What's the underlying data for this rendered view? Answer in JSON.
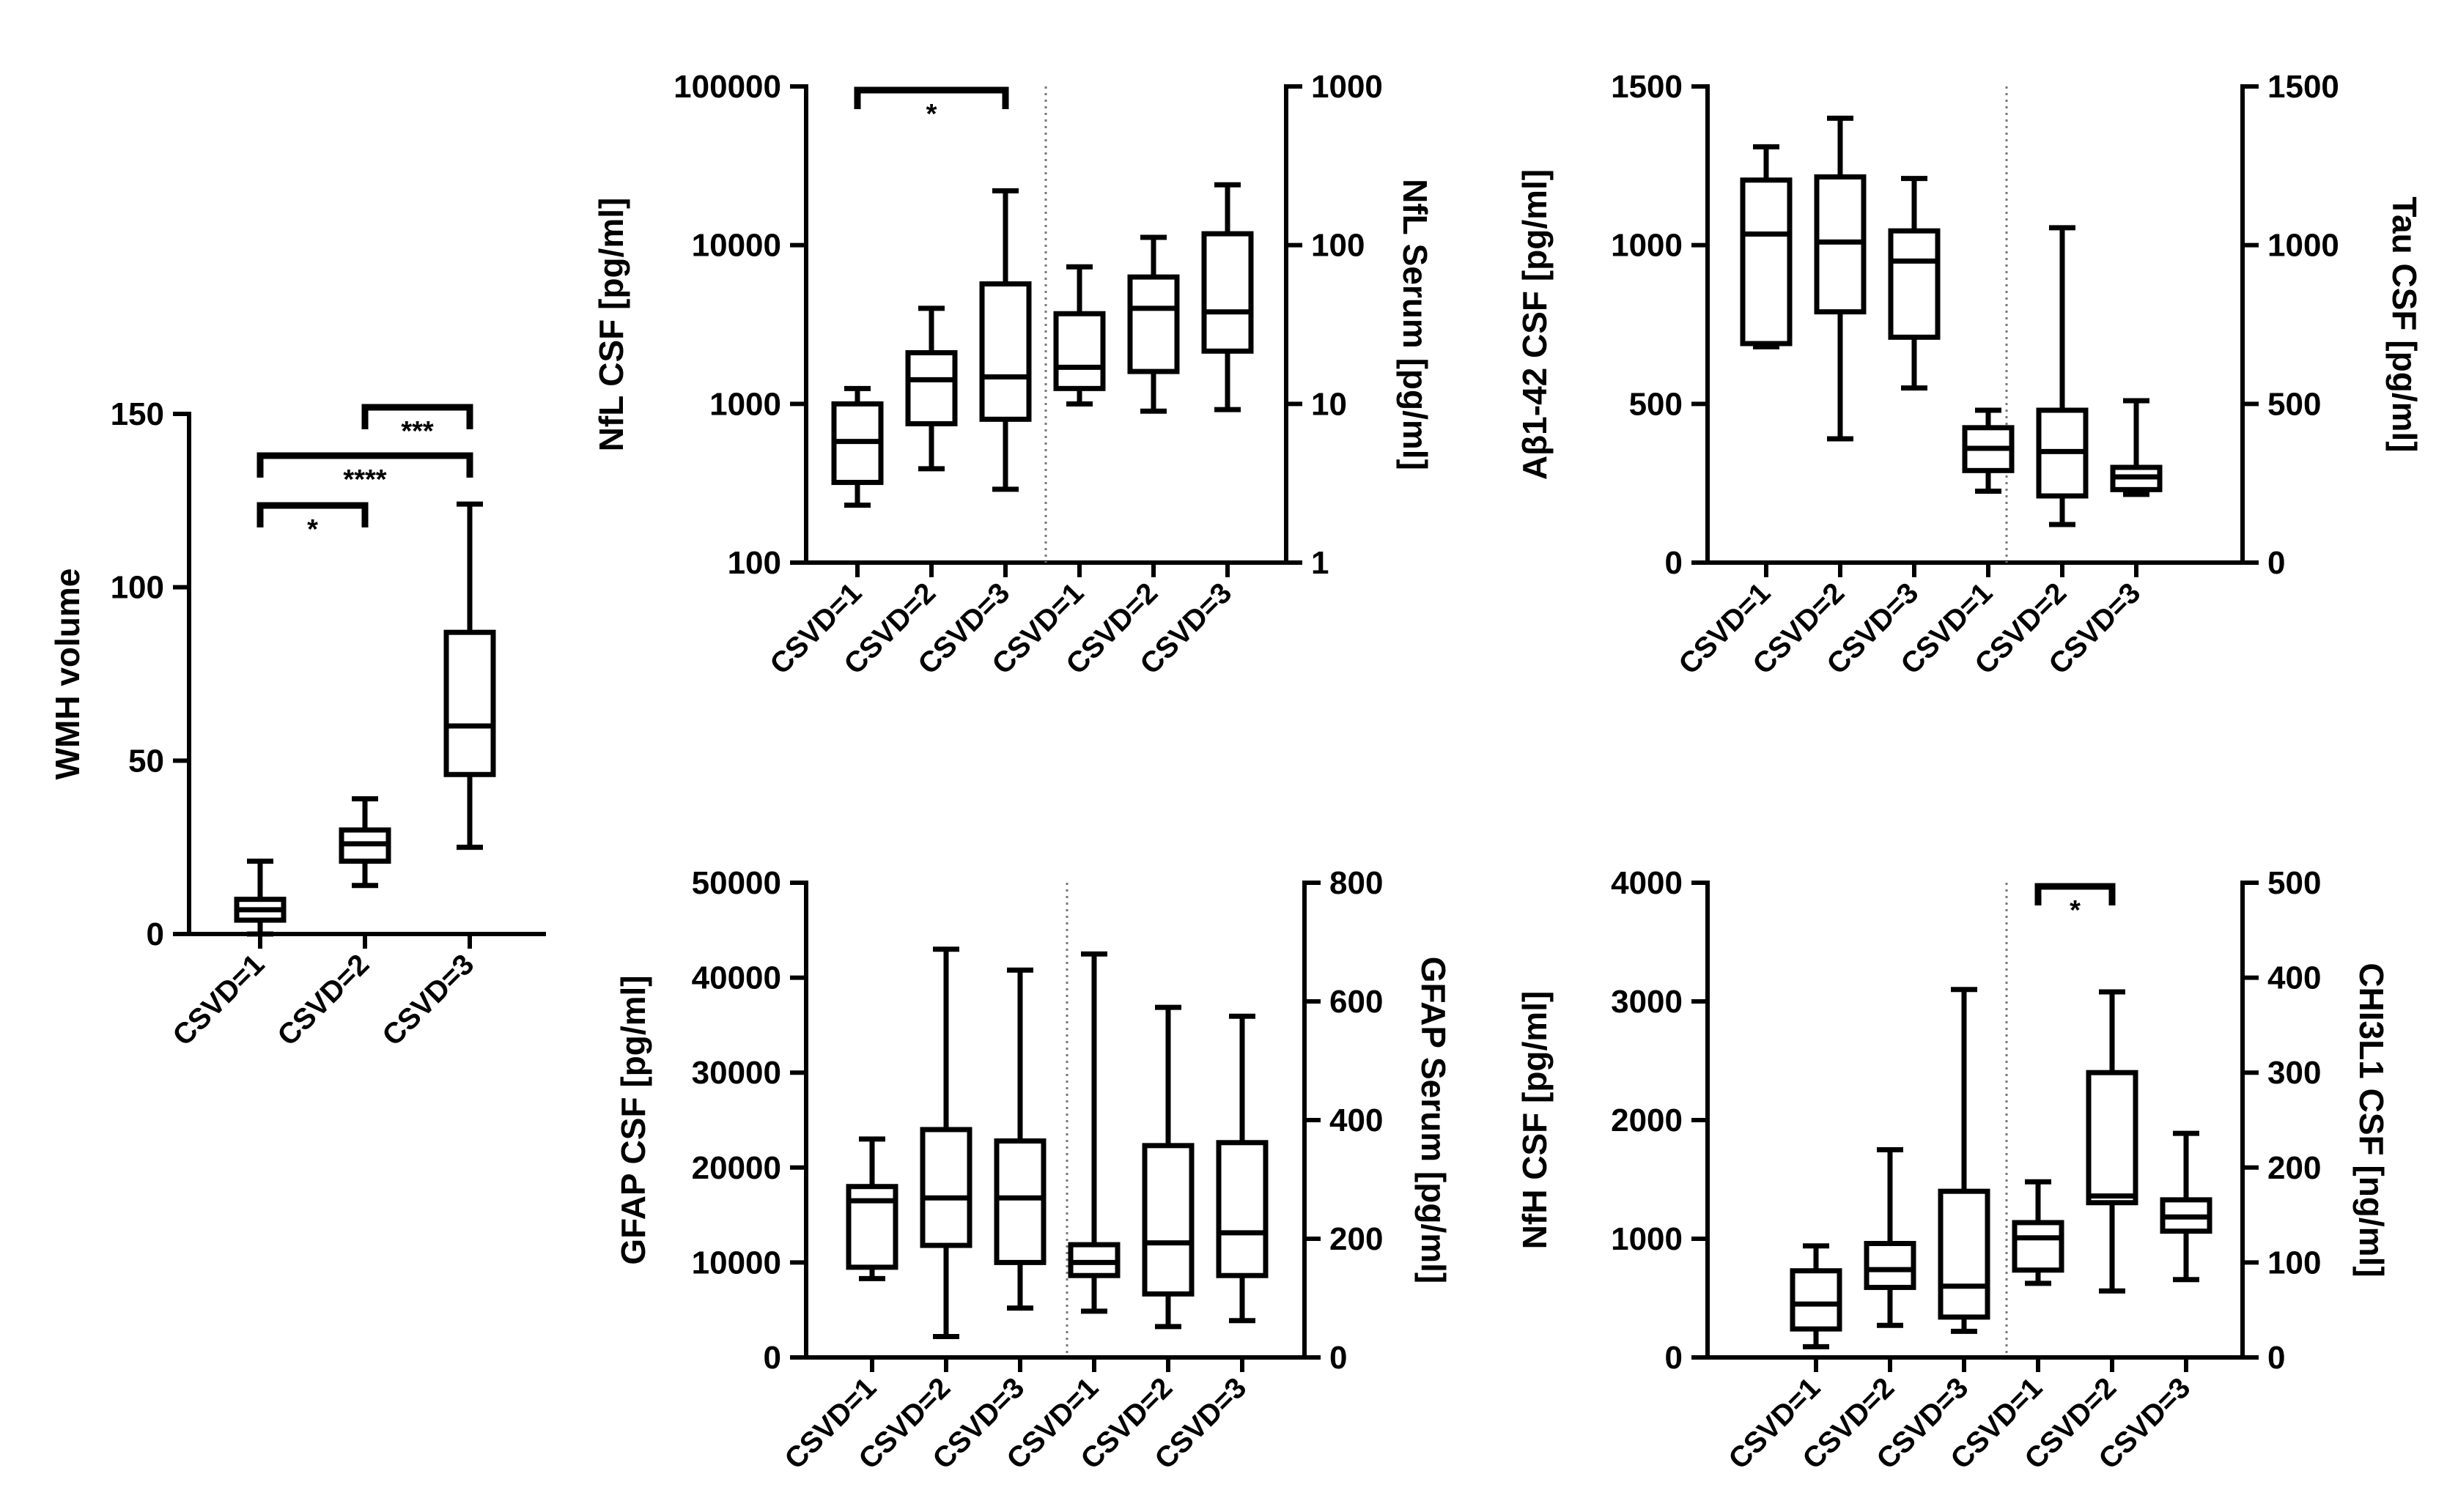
{
  "chart_data": [
    {
      "id": "wmh",
      "type": "boxplot",
      "title": "",
      "categories": [
        "CSVD=1",
        "CSVD=2",
        "CSVD=3"
      ],
      "ylabel": "WMH volume",
      "ylim": [
        0,
        150
      ],
      "yscale": "linear",
      "yticks": [
        0,
        50,
        100,
        150
      ],
      "ytick_labels": [
        "0",
        "50",
        "100",
        "150"
      ],
      "series": [
        {
          "name": "WMH volume",
          "axis": "left",
          "boxes": [
            {
              "min": 0,
              "q1": 4,
              "median": 7,
              "q3": 10,
              "max": 21
            },
            {
              "min": 14,
              "q1": 21,
              "median": 26,
              "q3": 30,
              "max": 39
            },
            {
              "min": 25,
              "q1": 46,
              "median": 60,
              "q3": 87,
              "max": 124
            }
          ]
        }
      ],
      "significance": [
        {
          "from": 0,
          "to": 1,
          "label": "*"
        },
        {
          "from": 0,
          "to": 2,
          "label": "****"
        },
        {
          "from": 1,
          "to": 2,
          "label": "***"
        }
      ]
    },
    {
      "id": "nfl",
      "type": "boxplot",
      "categories": [
        "CSVD=1",
        "CSVD=2",
        "CSVD=3",
        "CSVD=1",
        "CSVD=2",
        "CSVD=3"
      ],
      "ylabel": "NfL CSF [pg/ml]",
      "ylabel_right": "NfL Serum [pg/ml]",
      "yscale": "log",
      "ylim": [
        100,
        100000
      ],
      "yticks": [
        100,
        1000,
        10000,
        100000
      ],
      "ytick_labels": [
        "100",
        "1000",
        "10000",
        "100000"
      ],
      "ylim_right": [
        1,
        1000
      ],
      "yticks_right": [
        1,
        10,
        100,
        1000
      ],
      "ytick_labels_right": [
        "1",
        "10",
        "100",
        "1000"
      ],
      "series": [
        {
          "name": "NfL CSF",
          "axis": "left",
          "boxes": [
            {
              "min": 230,
              "q1": 320,
              "median": 580,
              "q3": 1000,
              "max": 1250
            },
            {
              "min": 390,
              "q1": 750,
              "median": 1420,
              "q3": 2100,
              "max": 4000
            },
            {
              "min": 290,
              "q1": 800,
              "median": 1480,
              "q3": 5700,
              "max": 22000
            }
          ]
        },
        {
          "name": "NfL Serum",
          "axis": "right",
          "boxes": [
            {
              "min": 10,
              "q1": 12.5,
              "median": 17,
              "q3": 37,
              "max": 73
            },
            {
              "min": 9,
              "q1": 16,
              "median": 40,
              "q3": 63,
              "max": 112
            },
            {
              "min": 9.2,
              "q1": 21.5,
              "median": 38,
              "q3": 118,
              "max": 240
            }
          ]
        }
      ],
      "significance": [
        {
          "from": 0,
          "to": 2,
          "label": "*"
        }
      ]
    },
    {
      "id": "abeta",
      "type": "boxplot",
      "categories": [
        "CSVD=1",
        "CSVD=2",
        "CSVD=3",
        "CSVD=1",
        "CSVD=2",
        "CSVD=3"
      ],
      "ylabel": "Aβ1-42 CSF [pg/ml]",
      "ylabel_right": "Tau CSF [pg/ml]",
      "yscale": "linear",
      "ylim": [
        0,
        1500
      ],
      "yticks": [
        0,
        500,
        1000,
        1500
      ],
      "ytick_labels": [
        "0",
        "500",
        "1000",
        "1500"
      ],
      "ylim_right": [
        0,
        1500
      ],
      "yticks_right": [
        0,
        500,
        1000,
        1500
      ],
      "ytick_labels_right": [
        "0",
        "500",
        "1000",
        "1500"
      ],
      "series": [
        {
          "name": "Aβ1-42 CSF",
          "axis": "left",
          "boxes": [
            {
              "min": 680,
              "q1": 690,
              "median": 1035,
              "q3": 1205,
              "max": 1310
            },
            {
              "min": 390,
              "q1": 790,
              "median": 1010,
              "q3": 1215,
              "max": 1400
            },
            {
              "min": 550,
              "q1": 710,
              "median": 950,
              "q3": 1045,
              "max": 1210
            }
          ]
        },
        {
          "name": "Tau CSF",
          "axis": "right",
          "boxes": [
            {
              "min": 225,
              "q1": 290,
              "median": 360,
              "q3": 425,
              "max": 480
            },
            {
              "min": 120,
              "q1": 210,
              "median": 350,
              "q3": 480,
              "max": 1055
            },
            {
              "min": 215,
              "q1": 230,
              "median": 270,
              "q3": 300,
              "max": 510
            }
          ]
        }
      ],
      "significance": []
    },
    {
      "id": "gfap",
      "type": "boxplot",
      "categories": [
        "CSVD=1",
        "CSVD=2",
        "CSVD=3",
        "CSVD=1",
        "CSVD=2",
        "CSVD=3"
      ],
      "ylabel": "GFAP CSF [pg/ml]",
      "ylabel_right": "GFAP Serum [pg/ml]",
      "yscale": "linear",
      "ylim": [
        0,
        50000
      ],
      "yticks": [
        0,
        10000,
        20000,
        30000,
        40000,
        50000
      ],
      "ytick_labels": [
        "0",
        "10000",
        "20000",
        "30000",
        "40000",
        "50000"
      ],
      "ylim_right": [
        0,
        800
      ],
      "yticks_right": [
        0,
        200,
        400,
        600,
        800
      ],
      "ytick_labels_right": [
        "0",
        "200",
        "400",
        "600",
        "800"
      ],
      "series": [
        {
          "name": "GFAP CSF",
          "axis": "left",
          "boxes": [
            {
              "min": 8300,
              "q1": 9500,
              "median": 16500,
              "q3": 18000,
              "max": 23000
            },
            {
              "min": 2200,
              "q1": 11800,
              "median": 16800,
              "q3": 24000,
              "max": 43000
            },
            {
              "min": 5200,
              "q1": 10000,
              "median": 16800,
              "q3": 22800,
              "max": 40800
            }
          ]
        },
        {
          "name": "GFAP Serum",
          "axis": "right",
          "boxes": [
            {
              "min": 78,
              "q1": 138,
              "median": 160,
              "q3": 190,
              "max": 680
            },
            {
              "min": 52,
              "q1": 107,
              "median": 193,
              "q3": 357,
              "max": 590
            },
            {
              "min": 62,
              "q1": 138,
              "median": 210,
              "q3": 362,
              "max": 575
            }
          ]
        }
      ],
      "significance": []
    },
    {
      "id": "nfh",
      "type": "boxplot",
      "categories": [
        "CSVD=1",
        "CSVD=2",
        "CSVD=3",
        "CSVD=1",
        "CSVD=2",
        "CSVD=3"
      ],
      "ylabel": "NfH CSF [pg/ml]",
      "ylabel_right": "CHI3L1 CSF [ng/ml]",
      "yscale": "linear",
      "ylim": [
        0,
        4000
      ],
      "yticks": [
        0,
        1000,
        2000,
        3000,
        4000
      ],
      "ytick_labels": [
        "0",
        "1000",
        "2000",
        "3000",
        "4000"
      ],
      "ylim_right": [
        0,
        500
      ],
      "yticks_right": [
        0,
        100,
        200,
        300,
        400,
        500
      ],
      "ytick_labels_right": [
        "0",
        "100",
        "200",
        "300",
        "400",
        "500"
      ],
      "series": [
        {
          "name": "NfH CSF",
          "axis": "left",
          "boxes": [
            {
              "min": 90,
              "q1": 240,
              "median": 450,
              "q3": 730,
              "max": 940
            },
            {
              "min": 270,
              "q1": 590,
              "median": 740,
              "q3": 960,
              "max": 1750
            },
            {
              "min": 220,
              "q1": 340,
              "median": 600,
              "q3": 1400,
              "max": 3100
            }
          ]
        },
        {
          "name": "CHI3L1 CSF",
          "axis": "right",
          "boxes": [
            {
              "min": 78,
              "q1": 92,
              "median": 126,
              "q3": 142,
              "max": 185
            },
            {
              "min": 70,
              "q1": 163,
              "median": 170,
              "q3": 300,
              "max": 385
            },
            {
              "min": 82,
              "q1": 133,
              "median": 148,
              "q3": 166,
              "max": 236
            }
          ]
        }
      ],
      "significance": [
        {
          "from": 3,
          "to": 4,
          "label": "*"
        }
      ]
    }
  ]
}
